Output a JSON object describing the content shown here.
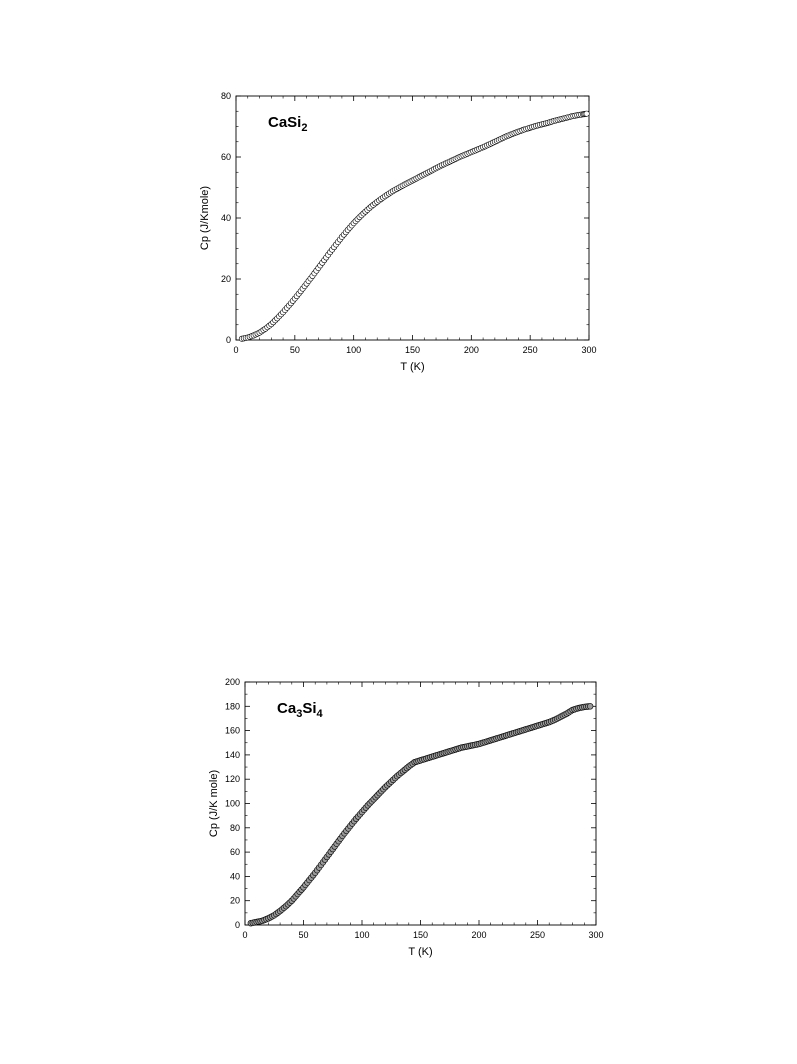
{
  "chart_data": [
    {
      "type": "scatter",
      "panel_label": [
        {
          "t": "CaSi"
        },
        {
          "t": "2",
          "sub": true
        }
      ],
      "xlabel": "T (K)",
      "ylabel": "Cp (J/Kmole)",
      "xlim": [
        0,
        300
      ],
      "ylim": [
        0,
        80
      ],
      "xticks": [
        0,
        50,
        100,
        150,
        200,
        250,
        300
      ],
      "yticks": [
        0,
        20,
        40,
        60,
        80
      ],
      "grid": false,
      "marker": "open-circle",
      "marker_fill": "#ffffff",
      "x": [
        5,
        10,
        15,
        20,
        25,
        30,
        35,
        40,
        45,
        50,
        55,
        60,
        65,
        70,
        75,
        80,
        85,
        90,
        95,
        100,
        105,
        110,
        115,
        120,
        125,
        130,
        135,
        140,
        145,
        150,
        155,
        160,
        165,
        170,
        175,
        180,
        185,
        190,
        195,
        200,
        205,
        210,
        215,
        220,
        225,
        230,
        235,
        240,
        245,
        250,
        255,
        260,
        265,
        270,
        275,
        280,
        285,
        290,
        295,
        298
      ],
      "y": [
        0.4,
        0.8,
        1.5,
        2.4,
        3.7,
        5.2,
        7.1,
        9.1,
        11.3,
        13.6,
        16.0,
        18.5,
        21.0,
        23.6,
        26.2,
        28.8,
        31.3,
        33.8,
        36.1,
        38.3,
        40.3,
        42.1,
        43.8,
        45.3,
        46.7,
        48.0,
        49.2,
        50.3,
        51.3,
        52.3,
        53.3,
        54.3,
        55.3,
        56.3,
        57.3,
        58.2,
        59.1,
        60.0,
        60.8,
        61.6,
        62.4,
        63.2,
        64.1,
        65.0,
        65.9,
        66.8,
        67.6,
        68.3,
        69.0,
        69.6,
        70.2,
        70.7,
        71.2,
        71.8,
        72.3,
        72.8,
        73.3,
        73.7,
        74.0,
        74.2
      ]
    },
    {
      "type": "scatter",
      "panel_label": [
        {
          "t": "Ca"
        },
        {
          "t": "3",
          "sub": true
        },
        {
          "t": "Si"
        },
        {
          "t": "4",
          "sub": true
        }
      ],
      "xlabel": "T (K)",
      "ylabel": "Cp (J/K mole)",
      "xlim": [
        0,
        300
      ],
      "ylim": [
        0,
        200
      ],
      "xticks": [
        0,
        50,
        100,
        150,
        200,
        250,
        300
      ],
      "yticks": [
        0,
        20,
        40,
        60,
        80,
        100,
        120,
        140,
        160,
        180,
        200
      ],
      "grid": false,
      "marker": "open-circle",
      "marker_fill": "#9a9a9a",
      "x": [
        5,
        10,
        15,
        20,
        25,
        30,
        35,
        40,
        45,
        50,
        55,
        60,
        65,
        70,
        75,
        80,
        85,
        90,
        95,
        100,
        105,
        110,
        115,
        120,
        125,
        130,
        135,
        140,
        145,
        150,
        155,
        160,
        165,
        170,
        175,
        180,
        185,
        190,
        195,
        200,
        205,
        210,
        215,
        220,
        225,
        230,
        235,
        240,
        245,
        250,
        255,
        260,
        265,
        270,
        275,
        280,
        285,
        290,
        295
      ],
      "y": [
        1.5,
        2.5,
        3.5,
        5.5,
        8.0,
        11.5,
        15.5,
        20.0,
        25.5,
        31.0,
        37.0,
        43.0,
        49.5,
        56.0,
        62.5,
        69.0,
        75.5,
        81.5,
        87.5,
        93.0,
        98.5,
        103.5,
        108.5,
        113.5,
        118.0,
        122.5,
        126.5,
        130.5,
        134.0,
        135.5,
        137.0,
        138.5,
        140.0,
        141.5,
        143.0,
        144.5,
        146.0,
        147.0,
        148.0,
        149.0,
        150.5,
        152.0,
        153.5,
        155.0,
        156.5,
        158.0,
        159.5,
        161.0,
        162.5,
        164.0,
        165.5,
        167.0,
        169.0,
        171.5,
        174.0,
        177.0,
        178.5,
        179.5,
        180.0
      ]
    }
  ]
}
